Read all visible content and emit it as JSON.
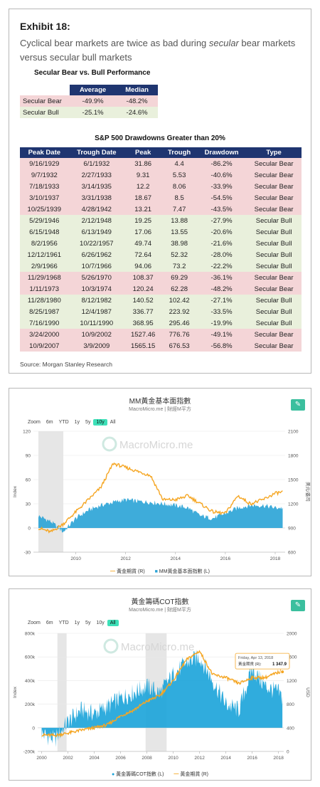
{
  "exhibit": {
    "title": "Exhibit 18:",
    "subtitle_pre": "Cyclical bear markets are twice as bad during ",
    "subtitle_em": "secular",
    "subtitle_post": " bear markets versus secular bull markets",
    "perf_title": "Secular Bear vs. Bull Performance",
    "perf_headers": [
      "Average",
      "Median"
    ],
    "perf_rows": [
      {
        "label": "Secular Bear",
        "average": "-49.9%",
        "median": "-48.2%",
        "kind": "bear"
      },
      {
        "label": "Secular Bull",
        "average": "-25.1%",
        "median": "-24.6%",
        "kind": "bull"
      }
    ],
    "dd_title": "S&P 500 Drawdowns Greater than 20%",
    "dd_headers": [
      "Peak Date",
      "Trough Date",
      "Peak",
      "Trough",
      "Drawdown",
      "Type"
    ],
    "dd_rows": [
      [
        "9/16/1929",
        "6/1/1932",
        "31.86",
        "4.4",
        "-86.2%",
        "Secular Bear"
      ],
      [
        "9/7/1932",
        "2/27/1933",
        "9.31",
        "5.53",
        "-40.6%",
        "Secular Bear"
      ],
      [
        "7/18/1933",
        "3/14/1935",
        "12.2",
        "8.06",
        "-33.9%",
        "Secular Bear"
      ],
      [
        "3/10/1937",
        "3/31/1938",
        "18.67",
        "8.5",
        "-54.5%",
        "Secular Bear"
      ],
      [
        "10/25/1939",
        "4/28/1942",
        "13.21",
        "7.47",
        "-43.5%",
        "Secular Bear"
      ],
      [
        "5/29/1946",
        "2/12/1948",
        "19.25",
        "13.88",
        "-27.9%",
        "Secular Bull"
      ],
      [
        "6/15/1948",
        "6/13/1949",
        "17.06",
        "13.55",
        "-20.6%",
        "Secular Bull"
      ],
      [
        "8/2/1956",
        "10/22/1957",
        "49.74",
        "38.98",
        "-21.6%",
        "Secular Bull"
      ],
      [
        "12/12/1961",
        "6/26/1962",
        "72.64",
        "52.32",
        "-28.0%",
        "Secular Bull"
      ],
      [
        "2/9/1966",
        "10/7/1966",
        "94.06",
        "73.2",
        "-22.2%",
        "Secular Bull"
      ],
      [
        "11/29/1968",
        "5/26/1970",
        "108.37",
        "69.29",
        "-36.1%",
        "Secular Bear"
      ],
      [
        "1/11/1973",
        "10/3/1974",
        "120.24",
        "62.28",
        "-48.2%",
        "Secular Bear"
      ],
      [
        "11/28/1980",
        "8/12/1982",
        "140.52",
        "102.42",
        "-27.1%",
        "Secular Bull"
      ],
      [
        "8/25/1987",
        "12/4/1987",
        "336.77",
        "223.92",
        "-33.5%",
        "Secular Bull"
      ],
      [
        "7/16/1990",
        "10/11/1990",
        "368.95",
        "295.46",
        "-19.9%",
        "Secular Bull"
      ],
      [
        "3/24/2000",
        "10/9/2002",
        "1527.46",
        "776.76",
        "-49.1%",
        "Secular Bear"
      ],
      [
        "10/9/2007",
        "3/9/2009",
        "1565.15",
        "676.53",
        "-56.8%",
        "Secular Bear"
      ]
    ],
    "source": "Source: Morgan Stanley Research"
  },
  "chart1": {
    "title": "MM黃金基本面指數",
    "subtitle": "MacroMicro.me | 財經M平方",
    "edit_icon": "pencil-icon",
    "zoom_label": "Zoom",
    "zoom_options": [
      "6m",
      "YTD",
      "1y",
      "5y",
      "10y",
      "All"
    ],
    "zoom_active": "10y",
    "watermark": "MacroMicro.me",
    "left_axis_title": "Index",
    "right_axis_title": "美元/盎司",
    "left_ticks": [
      "120",
      "90",
      "60",
      "30",
      "0",
      "-30"
    ],
    "right_ticks": [
      "2100",
      "1800",
      "1500",
      "1200",
      "900",
      "600"
    ],
    "x_ticks": [
      "2010",
      "2012",
      "2014",
      "2016",
      "2018"
    ],
    "legend": [
      "黃金期貨 (R)",
      "MM黃金基本面指數 (L)"
    ],
    "colors": {
      "gold": "#f5a623",
      "index": "#29a3d6",
      "shade": "#e6e6e6"
    }
  },
  "chart2": {
    "title": "黃金籌碼COT指數",
    "subtitle": "MacroMicro.me | 財經M平方",
    "edit_icon": "pencil-icon",
    "zoom_label": "Zoom",
    "zoom_options": [
      "6m",
      "YTD",
      "1y",
      "5y",
      "10y",
      "All"
    ],
    "zoom_active": "All",
    "watermark": "MacroMicro.me",
    "left_axis_title": "Index",
    "right_axis_title": "USD",
    "left_ticks": [
      "800k",
      "600k",
      "400k",
      "200k",
      "0",
      "-200k"
    ],
    "right_ticks": [
      "2000",
      "1600",
      "1200",
      "800",
      "400",
      "0"
    ],
    "x_ticks": [
      "2000",
      "2002",
      "2004",
      "2006",
      "2008",
      "2010",
      "2012",
      "2014",
      "2016",
      "2018"
    ],
    "tooltip": {
      "date": "Friday, Apr 13, 2018",
      "label": "黃金期貨 (R): ",
      "value": "1 347.9"
    },
    "legend": [
      "黃金籌碼COT指數 (L)",
      "黃金期貨 (R)"
    ],
    "colors": {
      "gold": "#f5a623",
      "index": "#1aa3d9",
      "shade": "#e6e6e6"
    }
  },
  "chart_data": [
    {
      "type": "table",
      "title": "Secular Bear vs. Bull Performance",
      "columns": [
        "",
        "Average",
        "Median"
      ],
      "rows": [
        [
          "Secular Bear",
          "-49.9%",
          "-48.2%"
        ],
        [
          "Secular Bull",
          "-25.1%",
          "-24.6%"
        ]
      ]
    },
    {
      "type": "table",
      "title": "S&P 500 Drawdowns Greater than 20%",
      "columns": [
        "Peak Date",
        "Trough Date",
        "Peak",
        "Trough",
        "Drawdown",
        "Type"
      ],
      "row_count": 17
    },
    {
      "type": "area",
      "title": "MM黃金基本面指數",
      "x": [
        2008.5,
        2009.0,
        2009.5,
        2010.0,
        2010.5,
        2011.0,
        2011.5,
        2012.0,
        2012.5,
        2013.0,
        2013.5,
        2014.0,
        2014.5,
        2015.0,
        2015.5,
        2016.0,
        2016.5,
        2017.0,
        2017.5,
        2018.0,
        2018.3
      ],
      "series": [
        {
          "name": "MM黃金基本面指數 (L)",
          "axis": "left",
          "values": [
            15,
            8,
            -5,
            12,
            22,
            28,
            32,
            35,
            33,
            32,
            30,
            28,
            25,
            15,
            12,
            18,
            25,
            28,
            28,
            25,
            25
          ]
        },
        {
          "name": "黃金期貨 (R)",
          "axis": "right",
          "values": [
            900,
            850,
            950,
            1100,
            1250,
            1400,
            1700,
            1650,
            1600,
            1550,
            1250,
            1250,
            1300,
            1200,
            1100,
            1080,
            1300,
            1200,
            1250,
            1330,
            1347
          ]
        }
      ],
      "left_range": [
        -30,
        120
      ],
      "right_range": [
        600,
        2100
      ],
      "x_range": [
        2008.3,
        2018.4
      ]
    },
    {
      "type": "area",
      "title": "黃金籌碼COT指數",
      "x": [
        2000,
        2001,
        2002,
        2003,
        2004,
        2005,
        2006,
        2007,
        2008,
        2009,
        2010,
        2011,
        2012,
        2013,
        2014,
        2015,
        2016,
        2017,
        2018,
        2018.3
      ],
      "series": [
        {
          "name": "黃金籌碼COT指數 (L)",
          "axis": "left",
          "values": [
            -50000,
            -100000,
            50000,
            150000,
            120000,
            180000,
            250000,
            300000,
            350000,
            300000,
            450000,
            550000,
            600000,
            400000,
            200000,
            150000,
            500000,
            350000,
            300000,
            250000
          ]
        },
        {
          "name": "黃金期貨 (R)",
          "axis": "right",
          "values": [
            280,
            270,
            310,
            360,
            400,
            450,
            600,
            700,
            850,
            950,
            1200,
            1550,
            1700,
            1300,
            1250,
            1150,
            1250,
            1250,
            1340,
            1347.9
          ]
        }
      ],
      "left_range": [
        -200000,
        800000
      ],
      "right_range": [
        0,
        2000
      ],
      "x_range": [
        1999.7,
        2018.4
      ]
    }
  ]
}
